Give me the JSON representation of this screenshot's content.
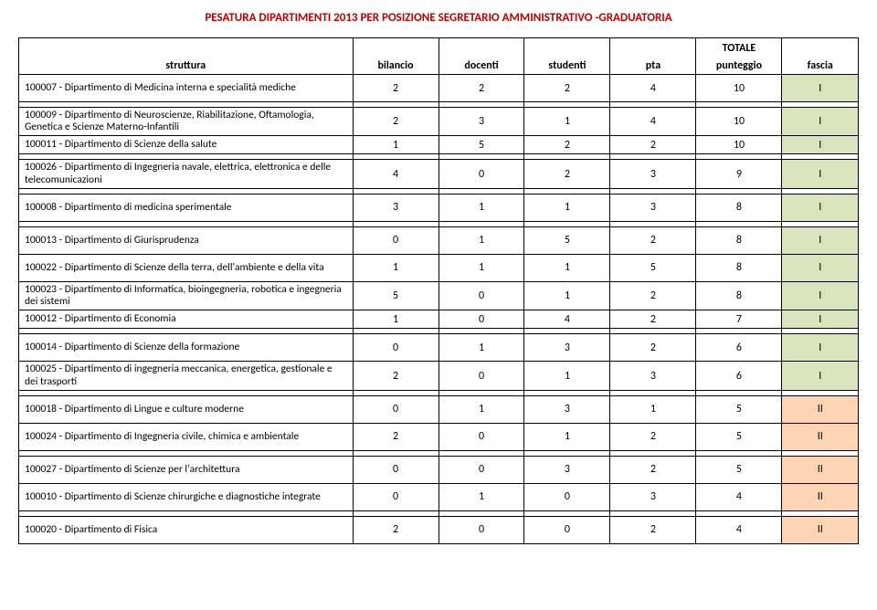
{
  "title": "PESATURA DIPARTIMENTI 2013 PER POSIZIONE SEGRETARIO AMMINISTRATIVO -GRADUATORIA",
  "columns": {
    "struttura": "struttura",
    "bilancio": "bilancio",
    "docenti": "docenti",
    "studenti": "studenti",
    "pta": "pta",
    "punteggio_top": "TOTALE",
    "punteggio_bottom": "punteggio",
    "fascia": "fascia"
  },
  "fascia_colors": {
    "I": "#d8e4bc",
    "II": "#fcd5b4"
  },
  "rows": [
    {
      "label": "100007 - Dipartimento di Medicina interna e specialità mediche",
      "bilancio": "2",
      "docenti": "2",
      "studenti": "2",
      "pta": "4",
      "punteggio": "10",
      "fascia": "I",
      "tall": true,
      "spacer_after": true
    },
    {
      "label": "100009 - Dipartimento di Neuroscienze, Riabilitazione, Oftamologia, Genetica e Scienze Materno-Infantili",
      "bilancio": "2",
      "docenti": "3",
      "studenti": "1",
      "pta": "4",
      "punteggio": "10",
      "fascia": "I",
      "tall": true
    },
    {
      "label": "100011 - Dipartimento di Scienze della salute",
      "bilancio": "1",
      "docenti": "5",
      "studenti": "2",
      "pta": "2",
      "punteggio": "10",
      "fascia": "I",
      "spacer_after": true
    },
    {
      "label": "100026 - Dipartimento di Ingegneria navale, elettrica, elettronica e delle telecomunicazioni",
      "bilancio": "4",
      "docenti": "0",
      "studenti": "2",
      "pta": "3",
      "punteggio": "9",
      "fascia": "I",
      "tall": true,
      "spacer_after": true
    },
    {
      "label": "100008 - Dipartimento di medicina sperimentale",
      "bilancio": "3",
      "docenti": "1",
      "studenti": "1",
      "pta": "3",
      "punteggio": "8",
      "fascia": "I",
      "tall": true,
      "spacer_after": true
    },
    {
      "label": "100013 - Dipartimento di Giurisprudenza",
      "bilancio": "0",
      "docenti": "1",
      "studenti": "5",
      "pta": "2",
      "punteggio": "8",
      "fascia": "I",
      "tall": true
    },
    {
      "label": "100022 - Dipartimento di Scienze della terra, dell'ambiente e della vita",
      "bilancio": "1",
      "docenti": "1",
      "studenti": "1",
      "pta": "5",
      "punteggio": "8",
      "fascia": "I",
      "tall": true
    },
    {
      "label": "100023 - Dipartimento di Informatica, bioingegneria, robotica e ingegneria dei sistemi",
      "bilancio": "5",
      "docenti": "0",
      "studenti": "1",
      "pta": "2",
      "punteggio": "8",
      "fascia": "I",
      "tall": true
    },
    {
      "label": "100012 - Dipartimento di Economia",
      "bilancio": "1",
      "docenti": "0",
      "studenti": "4",
      "pta": "2",
      "punteggio": "7",
      "fascia": "I",
      "spacer_after": true
    },
    {
      "label": "100014 - Dipartimento di Scienze della formazione",
      "bilancio": "0",
      "docenti": "1",
      "studenti": "3",
      "pta": "2",
      "punteggio": "6",
      "fascia": "I",
      "tall": true
    },
    {
      "label": "100025 - Dipartimento  di ingegneria meccanica, energetica, gestionale e dei trasporti",
      "bilancio": "2",
      "docenti": "0",
      "studenti": "1",
      "pta": "3",
      "punteggio": "6",
      "fascia": "I",
      "tall": true,
      "spacer_after": true
    },
    {
      "label": "100018 - Dipartimento di Lingue e culture moderne",
      "bilancio": "0",
      "docenti": "1",
      "studenti": "3",
      "pta": "1",
      "punteggio": "5",
      "fascia": "II",
      "tall": true
    },
    {
      "label": "100024 - Dipartimento di Ingegneria civile, chimica e ambientale",
      "bilancio": "2",
      "docenti": "0",
      "studenti": "1",
      "pta": "2",
      "punteggio": "5",
      "fascia": "II",
      "tall": true,
      "spacer_after": true
    },
    {
      "label": "100027 - Dipartimento di Scienze per l'architettura",
      "bilancio": "0",
      "docenti": "0",
      "studenti": "3",
      "pta": "2",
      "punteggio": "5",
      "fascia": "II",
      "tall": true
    },
    {
      "label": "100010 - Dipartimento di Scienze chirurgiche e diagnostiche integrate",
      "bilancio": "0",
      "docenti": "1",
      "studenti": "0",
      "pta": "3",
      "punteggio": "4",
      "fascia": "II",
      "tall": true,
      "spacer_after": true
    },
    {
      "label": "100020 - Dipartimento di Fisica",
      "bilancio": "2",
      "docenti": "0",
      "studenti": "0",
      "pta": "2",
      "punteggio": "4",
      "fascia": "II",
      "tall": true
    }
  ]
}
